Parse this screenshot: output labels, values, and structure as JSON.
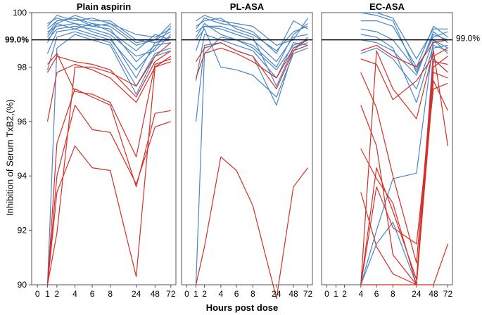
{
  "chart_data": {
    "type": "line",
    "ylabel": "Inhibition of Serum TxB2,(%)",
    "xlabel": "Hours post dose",
    "ylim": [
      90,
      100
    ],
    "yticks": [
      90,
      92,
      94,
      96,
      98,
      100
    ],
    "x_tick_labels": [
      "0",
      "1",
      "2",
      "4",
      "6",
      "8",
      "24",
      "48",
      "72"
    ],
    "reference_line": {
      "value": 99.0,
      "label_left": "99.0%",
      "label_right": "99.0%"
    },
    "colors": {
      "above_threshold": "#4a86c8",
      "below_threshold": "#d62f27",
      "reference": "#000000",
      "frame": "#555555"
    },
    "panels": [
      {
        "title": "Plain aspirin",
        "series": [
          {
            "color_group": "blue",
            "values": [
              null,
              99.2,
              99.7,
              99.8,
              99.6,
              99.5,
              98.8,
              99.0,
              99.3
            ]
          },
          {
            "color_group": "blue",
            "values": [
              null,
              99.5,
              99.9,
              99.7,
              99.8,
              99.6,
              99.2,
              99.1,
              99.4
            ]
          },
          {
            "color_group": "blue",
            "values": [
              null,
              98.9,
              99.6,
              99.9,
              99.7,
              99.7,
              99.0,
              98.9,
              99.0
            ]
          },
          {
            "color_group": "blue",
            "values": [
              null,
              99.0,
              99.4,
              99.5,
              99.4,
              99.2,
              98.4,
              98.6,
              99.2
            ]
          },
          {
            "color_group": "blue",
            "values": [
              null,
              99.6,
              99.8,
              99.6,
              99.5,
              99.4,
              98.2,
              98.8,
              98.9
            ]
          },
          {
            "color_group": "blue",
            "values": [
              null,
              98.5,
              99.3,
              99.4,
              99.2,
              99.0,
              97.9,
              98.7,
              99.5
            ]
          },
          {
            "color_group": "blue",
            "values": [
              null,
              99.3,
              99.5,
              99.6,
              99.3,
              99.1,
              97.6,
              98.9,
              99.1
            ]
          },
          {
            "color_group": "blue",
            "values": [
              null,
              97.9,
              99.1,
              99.3,
              99.1,
              98.9,
              97.3,
              98.5,
              98.7
            ]
          },
          {
            "color_group": "blue",
            "values": [
              null,
              99.1,
              99.6,
              99.4,
              99.6,
              99.3,
              98.6,
              99.2,
              99.0
            ]
          },
          {
            "color_group": "blue",
            "values": [
              null,
              90.0,
              98.7,
              99.2,
              99.0,
              98.8,
              97.0,
              98.4,
              98.6
            ]
          },
          {
            "color_group": "blue",
            "values": [
              null,
              99.4,
              99.7,
              99.8,
              99.5,
              99.6,
              98.9,
              99.0,
              99.6
            ]
          },
          {
            "color_group": "red",
            "values": [
              null,
              97.8,
              98.4,
              98.2,
              98.1,
              97.9,
              96.9,
              98.2,
              98.6
            ]
          },
          {
            "color_group": "red",
            "values": [
              null,
              96.0,
              97.8,
              98.1,
              97.9,
              97.6,
              96.7,
              98.0,
              98.4
            ]
          },
          {
            "color_group": "red",
            "values": [
              null,
              98.1,
              98.5,
              97.1,
              97.0,
              96.7,
              94.7,
              98.1,
              98.3
            ]
          },
          {
            "color_group": "red",
            "values": [
              null,
              90.0,
              95.2,
              97.2,
              96.9,
              96.6,
              93.6,
              96.3,
              96.4
            ]
          },
          {
            "color_group": "red",
            "values": [
              null,
              90.0,
              94.0,
              96.6,
              95.7,
              95.6,
              93.7,
              95.8,
              96.0
            ]
          },
          {
            "color_group": "red",
            "values": [
              null,
              90.0,
              93.4,
              95.1,
              94.3,
              94.2,
              90.3,
              98.0,
              98.2
            ]
          },
          {
            "color_group": "red",
            "values": [
              null,
              90.0,
              91.9,
              98.0,
              98.0,
              97.8,
              97.3,
              98.4,
              98.9
            ]
          }
        ]
      },
      {
        "title": "PL-ASA",
        "series": [
          {
            "color_group": "blue",
            "values": [
              null,
              99.4,
              99.8,
              99.6,
              99.5,
              99.3,
              98.5,
              99.7,
              99.4
            ]
          },
          {
            "color_group": "blue",
            "values": [
              null,
              99.7,
              99.9,
              99.7,
              99.6,
              99.5,
              98.8,
              99.0,
              99.8
            ]
          },
          {
            "color_group": "blue",
            "values": [
              null,
              98.6,
              99.5,
              99.4,
              99.2,
              99.0,
              98.2,
              99.1,
              99.2
            ]
          },
          {
            "color_group": "blue",
            "values": [
              null,
              99.1,
              99.6,
              99.2,
              99.0,
              98.7,
              97.9,
              98.8,
              99.0
            ]
          },
          {
            "color_group": "blue",
            "values": [
              null,
              97.5,
              99.2,
              99.0,
              98.8,
              98.6,
              97.6,
              98.9,
              98.8
            ]
          },
          {
            "color_group": "blue",
            "values": [
              null,
              99.5,
              99.7,
              99.8,
              99.4,
              99.2,
              98.6,
              99.3,
              99.5
            ]
          },
          {
            "color_group": "blue",
            "values": [
              null,
              96.0,
              98.8,
              98.9,
              98.6,
              98.4,
              96.6,
              98.6,
              99.1
            ]
          },
          {
            "color_group": "blue",
            "values": [
              null,
              99.0,
              99.4,
              98.0,
              97.9,
              97.7,
              96.9,
              98.5,
              98.7
            ]
          },
          {
            "color_group": "blue",
            "values": [
              null,
              90.0,
              98.5,
              99.1,
              99.0,
              98.8,
              98.0,
              99.2,
              99.6
            ]
          },
          {
            "color_group": "blue",
            "values": [
              null,
              99.3,
              99.5,
              99.5,
              99.3,
              99.1,
              97.3,
              98.7,
              98.9
            ]
          },
          {
            "color_group": "red",
            "values": [
              null,
              98.2,
              98.7,
              98.9,
              98.6,
              98.4,
              97.2,
              98.6,
              98.8
            ]
          },
          {
            "color_group": "red",
            "values": [
              null,
              97.6,
              98.5,
              98.7,
              98.5,
              98.2,
              97.6,
              98.7,
              99.0
            ]
          },
          {
            "color_group": "red",
            "values": [
              null,
              90.0,
              91.4,
              94.7,
              94.2,
              92.9,
              89.5,
              93.6,
              94.3
            ]
          }
        ]
      },
      {
        "title": "EC-ASA",
        "series": [
          {
            "color_group": "blue",
            "values": [
              null,
              null,
              null,
              100.0,
              100.0,
              99.8,
              98.3,
              99.4,
              99.4
            ]
          },
          {
            "color_group": "blue",
            "values": [
              null,
              null,
              null,
              99.7,
              99.7,
              99.5,
              98.0,
              99.5,
              99.1
            ]
          },
          {
            "color_group": "blue",
            "values": [
              null,
              null,
              null,
              99.4,
              99.3,
              99.0,
              97.9,
              99.1,
              99.3
            ]
          },
          {
            "color_group": "blue",
            "values": [
              null,
              null,
              null,
              99.0,
              98.9,
              98.6,
              97.7,
              99.3,
              98.9
            ]
          },
          {
            "color_group": "blue",
            "values": [
              null,
              null,
              null,
              98.5,
              98.7,
              98.3,
              97.2,
              99.0,
              98.7
            ]
          },
          {
            "color_group": "blue",
            "values": [
              null,
              null,
              null,
              100.0,
              99.9,
              99.7,
              97.8,
              99.2,
              99.0
            ]
          },
          {
            "color_group": "blue",
            "values": [
              null,
              null,
              null,
              99.2,
              99.1,
              98.7,
              96.7,
              98.8,
              98.6
            ]
          },
          {
            "color_group": "blue",
            "values": [
              null,
              null,
              null,
              90.0,
              91.5,
              92.3,
              90.0,
              98.7,
              98.8
            ]
          },
          {
            "color_group": "blue",
            "values": [
              null,
              null,
              null,
              90.0,
              92.0,
              93.9,
              94.1,
              99.0,
              98.5
            ]
          },
          {
            "color_group": "red",
            "values": [
              null,
              null,
              null,
              98.6,
              98.8,
              98.4,
              98.0,
              98.9,
              99.0
            ]
          },
          {
            "color_group": "red",
            "values": [
              null,
              null,
              null,
              98.3,
              98.1,
              96.8,
              97.5,
              98.4,
              98.7
            ]
          },
          {
            "color_group": "red",
            "values": [
              null,
              null,
              null,
              97.8,
              96.5,
              94.0,
              90.8,
              98.2,
              98.1
            ]
          },
          {
            "color_group": "red",
            "values": [
              null,
              null,
              null,
              95.0,
              93.9,
              93.0,
              90.0,
              97.8,
              97.6
            ]
          },
          {
            "color_group": "red",
            "values": [
              null,
              null,
              null,
              90.0,
              93.6,
              92.1,
              91.5,
              97.2,
              97.4
            ]
          },
          {
            "color_group": "red",
            "values": [
              null,
              null,
              null,
              93.4,
              91.4,
              90.4,
              90.0,
              98.0,
              98.4
            ]
          },
          {
            "color_group": "red",
            "values": [
              null,
              null,
              null,
              90.0,
              98.6,
              97.2,
              96.1,
              98.6,
              95.1
            ]
          },
          {
            "color_group": "red",
            "values": [
              null,
              null,
              null,
              90.0,
              90.0,
              90.0,
              90.0,
              97.5,
              96.4
            ]
          },
          {
            "color_group": "red",
            "values": [
              null,
              null,
              null,
              96.6,
              95.1,
              91.1,
              90.0,
              90.0,
              91.5
            ]
          },
          {
            "color_group": "red",
            "values": [
              null,
              null,
              null,
              90.0,
              94.3,
              92.7,
              90.2,
              98.3,
              97.8
            ]
          }
        ]
      }
    ]
  }
}
